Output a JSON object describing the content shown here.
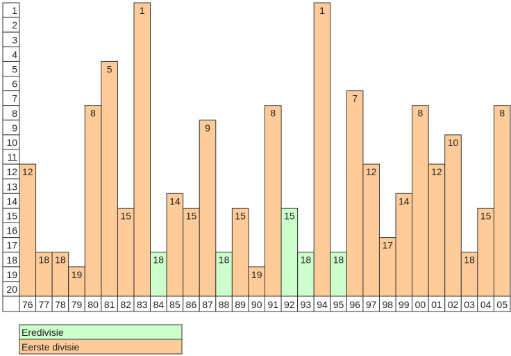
{
  "chart_data": {
    "type": "bar",
    "categories": [
      "76",
      "77",
      "78",
      "79",
      "80",
      "81",
      "82",
      "83",
      "84",
      "85",
      "86",
      "87",
      "88",
      "89",
      "90",
      "91",
      "92",
      "93",
      "94",
      "95",
      "96",
      "97",
      "98",
      "99",
      "00",
      "01",
      "02",
      "03",
      "04",
      "05"
    ],
    "values": [
      12,
      18,
      18,
      19,
      8,
      5,
      15,
      1,
      18,
      14,
      15,
      9,
      18,
      15,
      19,
      8,
      15,
      18,
      1,
      18,
      7,
      12,
      17,
      14,
      8,
      12,
      10,
      18,
      15,
      8
    ],
    "division": [
      "E",
      "E",
      "E",
      "E",
      "E",
      "E",
      "E",
      "E",
      "D",
      "E",
      "E",
      "E",
      "D",
      "E",
      "E",
      "E",
      "D",
      "D",
      "E",
      "D",
      "E",
      "E",
      "E",
      "E",
      "E",
      "E",
      "E",
      "E",
      "E",
      "E"
    ],
    "y_ticks": [
      1,
      2,
      3,
      4,
      5,
      6,
      7,
      8,
      9,
      10,
      11,
      12,
      13,
      14,
      15,
      16,
      17,
      18,
      19,
      20
    ],
    "ylim": [
      1,
      20
    ],
    "y_inverted": true,
    "grid": false,
    "legend_placement": "bottom-left",
    "legend": [
      {
        "key": "D",
        "label": "Eredivisie",
        "color": "#CCFFCC"
      },
      {
        "key": "E",
        "label": "Eerste divisie",
        "color": "#FFCC99"
      }
    ]
  }
}
